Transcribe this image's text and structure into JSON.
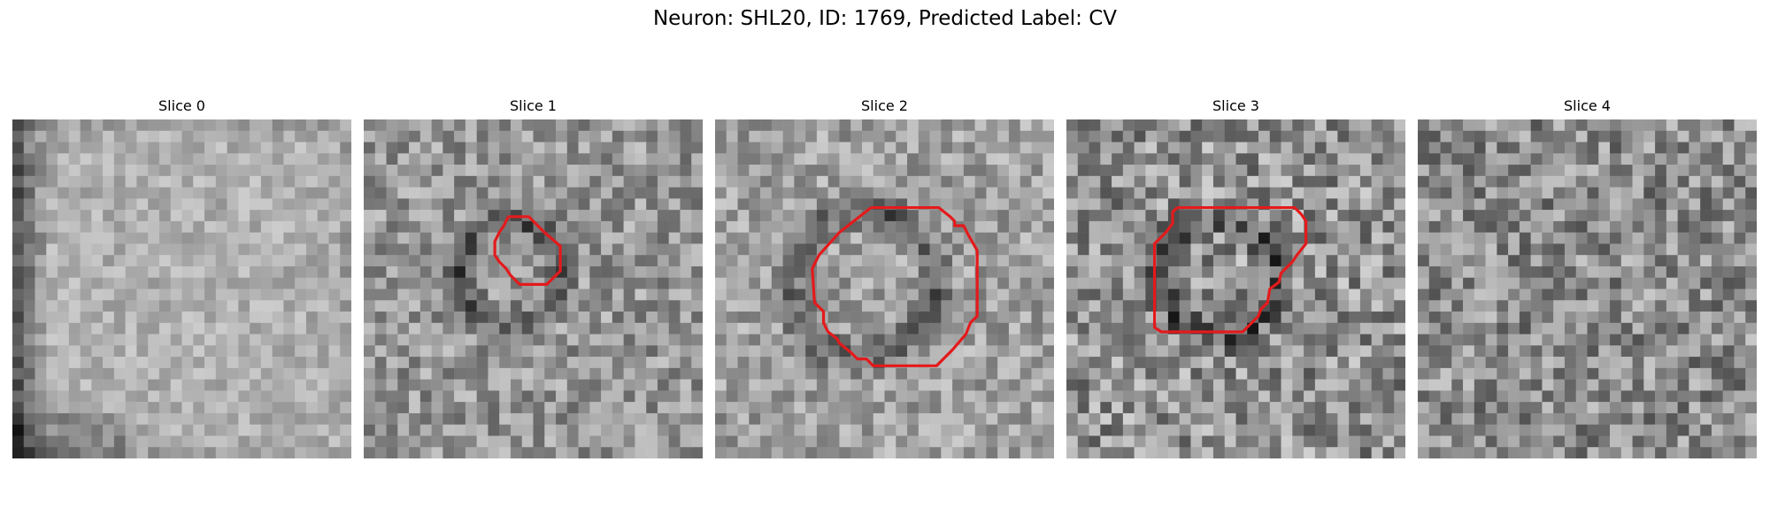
{
  "figure": {
    "title": "Neuron: SHL20, ID: 1769, Predicted Label: CV"
  },
  "grid_size": 30,
  "panels": [
    {
      "title": "Slice 0",
      "pattern": "smooth-bright",
      "seed": 11,
      "ring": null,
      "ring_cell": null,
      "contour": []
    },
    {
      "title": "Slice 1",
      "pattern": "noisy",
      "seed": 23,
      "ring_cell": [
        13,
        13.5,
        4.5,
        1.6
      ],
      "contour": [
        [
          12.8,
          8.6
        ],
        [
          14.6,
          8.6
        ],
        [
          16.0,
          10.0
        ],
        [
          17.4,
          11.2
        ],
        [
          17.4,
          13.4
        ],
        [
          16.2,
          14.6
        ],
        [
          15.8,
          14.6
        ],
        [
          14.8,
          14.6
        ],
        [
          13.8,
          14.6
        ],
        [
          13.0,
          13.8
        ],
        [
          12.6,
          13.2
        ],
        [
          12.0,
          12.6
        ],
        [
          11.6,
          12.0
        ],
        [
          11.6,
          10.8
        ],
        [
          12.0,
          10.0
        ],
        [
          12.4,
          9.4
        ],
        [
          12.8,
          8.6
        ]
      ]
    },
    {
      "title": "Slice 2",
      "pattern": "noisy-mid",
      "seed": 37,
      "ring_cell": [
        13,
        14.5,
        6.5,
        2.2
      ],
      "contour": [
        [
          13.8,
          7.8
        ],
        [
          19.8,
          7.8
        ],
        [
          20.8,
          8.6
        ],
        [
          21.2,
          9.0
        ],
        [
          21.2,
          9.4
        ],
        [
          22.0,
          9.4
        ],
        [
          22.4,
          10.2
        ],
        [
          23.2,
          11.6
        ],
        [
          23.2,
          17.4
        ],
        [
          22.6,
          18.0
        ],
        [
          22.2,
          19.0
        ],
        [
          21.0,
          20.4
        ],
        [
          19.6,
          21.8
        ],
        [
          14.0,
          21.8
        ],
        [
          13.4,
          21.2
        ],
        [
          12.6,
          21.2
        ],
        [
          12.0,
          20.6
        ],
        [
          11.0,
          19.8
        ],
        [
          10.8,
          19.4
        ],
        [
          10.0,
          18.8
        ],
        [
          9.6,
          18.0
        ],
        [
          9.6,
          17.0
        ],
        [
          8.8,
          16.2
        ],
        [
          8.6,
          13.2
        ],
        [
          9.2,
          12.0
        ],
        [
          11.0,
          10.0
        ],
        [
          13.8,
          7.8
        ]
      ]
    },
    {
      "title": "Slice 3",
      "pattern": "noisy-contrast",
      "seed": 53,
      "ring_cell": [
        13.5,
        14,
        5.2,
        1.8
      ],
      "contour": [
        [
          9.8,
          7.8
        ],
        [
          20.2,
          7.8
        ],
        [
          20.8,
          8.4
        ],
        [
          21.2,
          9.0
        ],
        [
          21.2,
          11.0
        ],
        [
          20.4,
          12.0
        ],
        [
          20.0,
          12.6
        ],
        [
          19.0,
          13.6
        ],
        [
          18.8,
          14.4
        ],
        [
          18.0,
          15.0
        ],
        [
          17.8,
          16.2
        ],
        [
          17.2,
          16.8
        ],
        [
          17.0,
          17.4
        ],
        [
          16.4,
          18.0
        ],
        [
          15.6,
          18.8
        ],
        [
          8.4,
          18.8
        ],
        [
          7.8,
          18.4
        ],
        [
          7.8,
          11.0
        ],
        [
          8.8,
          10.0
        ],
        [
          9.4,
          9.2
        ],
        [
          9.4,
          8.2
        ],
        [
          9.8,
          7.8
        ]
      ]
    },
    {
      "title": "Slice 4",
      "pattern": "noisy-dark",
      "seed": 71,
      "ring_cell": null,
      "contour": []
    }
  ],
  "colors": {
    "contour": "#e41a1c"
  }
}
